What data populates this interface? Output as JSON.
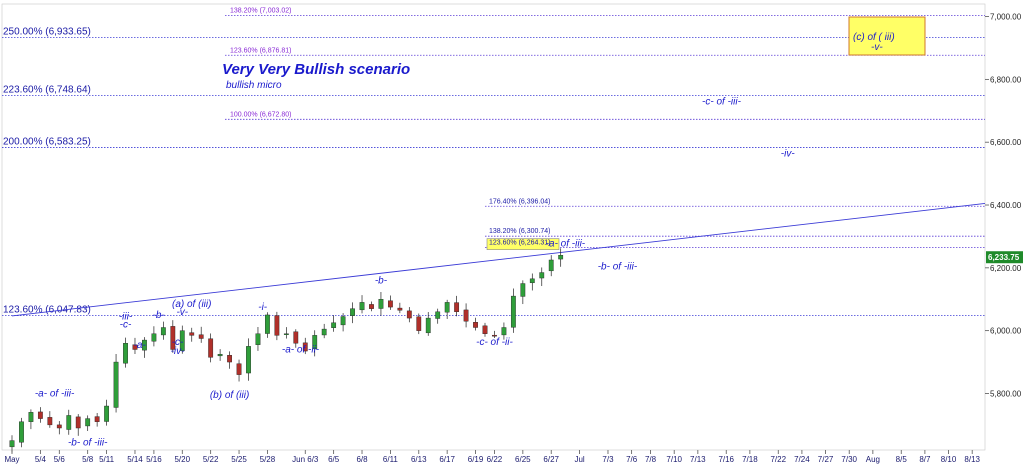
{
  "chart_data": {
    "type": "candlestick",
    "title": "Very Very Bullish scenario",
    "subtitle": "bullish micro",
    "ylim": [
      5620,
      7040
    ],
    "y_ticks": [
      {
        "value": 5800,
        "label": "5,800.00"
      },
      {
        "value": 6000,
        "label": "6,000.00"
      },
      {
        "value": 6200,
        "label": "6,200.00"
      },
      {
        "value": 6400,
        "label": "6,400.00"
      },
      {
        "value": 6600,
        "label": "6,600.00"
      },
      {
        "value": 6800,
        "label": "6,800.00"
      },
      {
        "value": 7000,
        "label": "7,000.00"
      }
    ],
    "x_ticks": [
      {
        "i": 0,
        "label": "May"
      },
      {
        "i": 3,
        "label": "5/4"
      },
      {
        "i": 5,
        "label": "5/6"
      },
      {
        "i": 8,
        "label": "5/8"
      },
      {
        "i": 10,
        "label": "5/11"
      },
      {
        "i": 13,
        "label": "5/14"
      },
      {
        "i": 15,
        "label": "5/16"
      },
      {
        "i": 18,
        "label": "5/20"
      },
      {
        "i": 21,
        "label": "5/22"
      },
      {
        "i": 24,
        "label": "5/25"
      },
      {
        "i": 27,
        "label": "5/28"
      },
      {
        "i": 31,
        "label": "Jun 6/3"
      },
      {
        "i": 34,
        "label": "6/5"
      },
      {
        "i": 37,
        "label": "6/8"
      },
      {
        "i": 40,
        "label": "6/11"
      },
      {
        "i": 43,
        "label": "6/13"
      },
      {
        "i": 46,
        "label": "6/17"
      },
      {
        "i": 49,
        "label": "6/19"
      },
      {
        "i": 51,
        "label": "6/22"
      },
      {
        "i": 54,
        "label": "6/25"
      },
      {
        "i": 57,
        "label": "6/27"
      },
      {
        "i": 60,
        "label": "Jul"
      },
      {
        "i": 63,
        "label": "7/3"
      },
      {
        "i": 65.5,
        "label": "7/6"
      },
      {
        "i": 67.5,
        "label": "7/8"
      },
      {
        "i": 70,
        "label": "7/10"
      },
      {
        "i": 72.5,
        "label": "7/13"
      },
      {
        "i": 75.5,
        "label": "7/16"
      },
      {
        "i": 78,
        "label": "7/18"
      },
      {
        "i": 81,
        "label": "7/22"
      },
      {
        "i": 83.5,
        "label": "7/24"
      },
      {
        "i": 86,
        "label": "7/27"
      },
      {
        "i": 88.5,
        "label": "7/30"
      },
      {
        "i": 91,
        "label": "Aug"
      },
      {
        "i": 94,
        "label": "8/5"
      },
      {
        "i": 96.5,
        "label": "8/7"
      },
      {
        "i": 99,
        "label": "8/10"
      },
      {
        "i": 101.5,
        "label": "8/13"
      }
    ],
    "closes": [
      5650,
      5710,
      5740,
      5720,
      5700,
      5690,
      5730,
      5690,
      5720,
      5710,
      5760,
      5900,
      5960,
      5940,
      5970,
      5990,
      6010,
      5940,
      6000,
      5985,
      5975,
      5915,
      5925,
      5900,
      5860,
      5950,
      5990,
      6050,
      5985,
      5990,
      5960,
      5935,
      5985,
      6005,
      6025,
      6045,
      6070,
      6090,
      6070,
      6100,
      6075,
      6065,
      6040,
      6000,
      6040,
      6060,
      6090,
      6060,
      6030,
      6010,
      5990,
      5985,
      6010,
      6110,
      6150,
      6165,
      6185,
      6225,
      6240
    ],
    "price_tag": {
      "value": 6233.75,
      "label": "6,233.75"
    },
    "fib_levels_left": [
      {
        "value": 6933.65,
        "label": "250.00% (6,933.65)"
      },
      {
        "value": 6748.64,
        "label": "223.60% (6,748.64)"
      },
      {
        "value": 6583.25,
        "label": "200.00% (6,583.25)"
      },
      {
        "value": 6047.83,
        "label": "123.60% (6,047.83)"
      }
    ],
    "fib_levels_right": [
      {
        "value": 7003.02,
        "label": "138.20% (7,003.02)"
      },
      {
        "value": 6876.81,
        "label": "123.60% (6,876.81)"
      },
      {
        "value": 6672.8,
        "label": "100.00% (6,672.80)"
      },
      {
        "value": 6396.04,
        "label": "176.40% (6,396.04)"
      },
      {
        "value": 6300.74,
        "label": "138.20% (6,300.74)"
      },
      {
        "value": 6264.31,
        "label": "123.60% (6,264.31)"
      }
    ],
    "trendline": {
      "from": {
        "i": 0,
        "value": 6047
      },
      "to": {
        "i": 104,
        "value": 6405
      }
    },
    "wave_labels": [
      {
        "text": "-a- of -iii-",
        "i": 4.5,
        "value": 5790
      },
      {
        "text": "-b- of -iii-",
        "i": 8,
        "value": 5635
      },
      {
        "text": "-iii-",
        "i": 12,
        "value": 6035
      },
      {
        "text": "-c-",
        "i": 12,
        "value": 6010
      },
      {
        "text": "-a-",
        "i": 13.5,
        "value": 5945
      },
      {
        "text": "-b-",
        "i": 15.5,
        "value": 6040
      },
      {
        "text": "(a) of (iii)",
        "i": 19,
        "value": 6075
      },
      {
        "text": "-v-",
        "i": 18,
        "value": 6050
      },
      {
        "text": "-c-",
        "i": 17.5,
        "value": 5955
      },
      {
        "text": "-iv-",
        "i": 17.5,
        "value": 5925
      },
      {
        "text": "(b) of (iii)",
        "i": 23,
        "value": 5785
      },
      {
        "text": "-i-",
        "i": 26.5,
        "value": 6065
      },
      {
        "text": "-a- of -ii-",
        "i": 30.5,
        "value": 5930
      },
      {
        "text": "-b-",
        "i": 39,
        "value": 6150
      },
      {
        "text": "-c- of -ii-",
        "i": 51,
        "value": 5955
      },
      {
        "text": "-a- of -iii-",
        "i": 58.5,
        "value": 6268
      },
      {
        "text": "-b- of -iii-",
        "i": 64,
        "value": 6195
      },
      {
        "text": "-c- of -iii-",
        "i": 75,
        "value": 6720
      },
      {
        "text": "-iv-",
        "i": 82,
        "value": 6555
      }
    ],
    "callout": {
      "line1": "(c) of ( iii)",
      "line2": "-v-"
    }
  }
}
